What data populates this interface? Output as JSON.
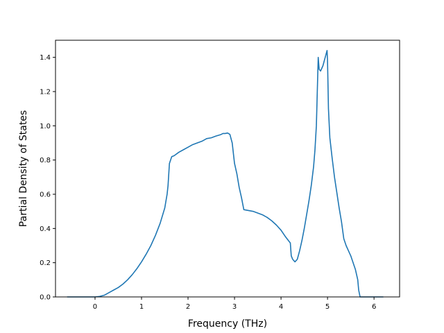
{
  "chart_data": {
    "type": "line",
    "title": "",
    "xlabel": "Frequency (THz)",
    "ylabel": "Partial Density of States",
    "xlim": [
      -0.85,
      6.55
    ],
    "ylim": [
      0.0,
      1.5
    ],
    "xticks": [
      0,
      1,
      2,
      3,
      4,
      5,
      6
    ],
    "xtick_labels": [
      "0",
      "1",
      "2",
      "3",
      "4",
      "5",
      "6"
    ],
    "yticks": [
      0.0,
      0.2,
      0.4,
      0.6,
      0.8,
      1.0,
      1.2,
      1.4
    ],
    "ytick_labels": [
      "0.0",
      "0.2",
      "0.4",
      "0.6",
      "0.8",
      "1.0",
      "1.2",
      "1.4"
    ],
    "grid": false,
    "legend": "none",
    "line_color": "#1f77b4",
    "series": [
      {
        "x": [
          -0.6,
          -0.3,
          0.0,
          0.1,
          0.2,
          0.3,
          0.4,
          0.5,
          0.6,
          0.7,
          0.8,
          0.9,
          1.0,
          1.1,
          1.2,
          1.3,
          1.4,
          1.5,
          1.55,
          1.57,
          1.6,
          1.65,
          1.7,
          1.8,
          1.9,
          2.0,
          2.1,
          2.2,
          2.3,
          2.4,
          2.5,
          2.6,
          2.7,
          2.75,
          2.8,
          2.85,
          2.9,
          2.95,
          3.0,
          3.05,
          3.1,
          3.15,
          3.2,
          3.3,
          3.4,
          3.5,
          3.6,
          3.7,
          3.8,
          3.9,
          4.0,
          4.1,
          4.2,
          4.22,
          4.25,
          4.3,
          4.35,
          4.4,
          4.45,
          4.5,
          4.55,
          4.6,
          4.65,
          4.7,
          4.73,
          4.76,
          4.78,
          4.8,
          4.82,
          4.85,
          4.9,
          4.95,
          4.97,
          4.99,
          5.0,
          5.02,
          5.05,
          5.1,
          5.15,
          5.2,
          5.25,
          5.3,
          5.35,
          5.4,
          5.45,
          5.5,
          5.55,
          5.6,
          5.65,
          5.67,
          5.7,
          5.8,
          6.0,
          6.2
        ],
        "y": [
          0.0,
          0.0,
          0.0,
          0.003,
          0.01,
          0.025,
          0.04,
          0.055,
          0.075,
          0.1,
          0.13,
          0.165,
          0.205,
          0.25,
          0.3,
          0.36,
          0.43,
          0.52,
          0.6,
          0.65,
          0.78,
          0.82,
          0.825,
          0.845,
          0.86,
          0.875,
          0.89,
          0.9,
          0.91,
          0.925,
          0.93,
          0.94,
          0.948,
          0.955,
          0.955,
          0.958,
          0.95,
          0.9,
          0.78,
          0.72,
          0.64,
          0.58,
          0.51,
          0.505,
          0.5,
          0.49,
          0.48,
          0.465,
          0.445,
          0.42,
          0.39,
          0.35,
          0.315,
          0.24,
          0.22,
          0.205,
          0.22,
          0.27,
          0.33,
          0.4,
          0.48,
          0.56,
          0.65,
          0.76,
          0.86,
          1.0,
          1.2,
          1.4,
          1.33,
          1.32,
          1.35,
          1.4,
          1.42,
          1.44,
          1.38,
          1.1,
          0.93,
          0.81,
          0.7,
          0.61,
          0.52,
          0.44,
          0.34,
          0.3,
          0.27,
          0.24,
          0.2,
          0.16,
          0.1,
          0.04,
          0.0,
          0.0,
          0.0,
          0.0
        ]
      }
    ]
  }
}
